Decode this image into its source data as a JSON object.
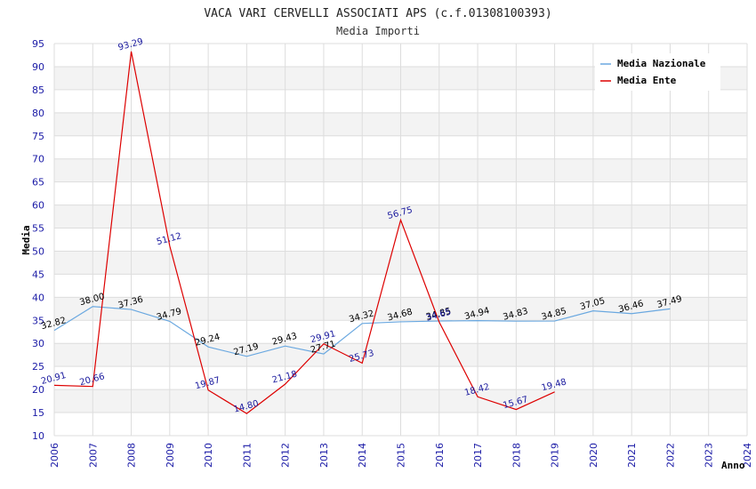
{
  "chart_data": {
    "type": "line",
    "title": "VACA VARI CERVELLI ASSOCIATI APS (c.f.01308100393)",
    "subtitle": "Media Importi",
    "xlabel": "Anno",
    "ylabel": "Media",
    "ylim": [
      10,
      95
    ],
    "yticks": [
      "10",
      "15",
      "20",
      "25",
      "30",
      "35",
      "40",
      "45",
      "50",
      "55",
      "60",
      "65",
      "70",
      "75",
      "80",
      "85",
      "90",
      "95"
    ],
    "x": [
      "2006",
      "2007",
      "2008",
      "2009",
      "2010",
      "2011",
      "2012",
      "2013",
      "2014",
      "2015",
      "2016",
      "2017",
      "2018",
      "2019",
      "2020",
      "2021",
      "2022",
      "2023",
      "2024"
    ],
    "grid": true,
    "legend_position": "top-right",
    "series": [
      {
        "name": "Media Nazionale",
        "color": "#6aa8e0",
        "x": [
          "2006",
          "2007",
          "2008",
          "2009",
          "2010",
          "2011",
          "2012",
          "2013",
          "2014",
          "2015",
          "2016",
          "2017",
          "2018",
          "2019",
          "2020",
          "2021",
          "2022"
        ],
        "values": [
          32.82,
          38.0,
          37.36,
          34.79,
          29.24,
          27.19,
          29.43,
          27.71,
          34.32,
          34.68,
          34.85,
          34.94,
          34.83,
          34.85,
          37.05,
          36.46,
          37.49
        ],
        "labels": [
          "32.82",
          "38.00",
          "37.36",
          "34.79",
          "29.24",
          "27.19",
          "29.43",
          "27.71",
          "34.32",
          "34.68",
          "34.85",
          "34.94",
          "34.83",
          "34.85",
          "37.05",
          "36.46",
          "37.49"
        ]
      },
      {
        "name": "Media Ente",
        "color": "#dd0000",
        "x": [
          "2006",
          "2007",
          "2008",
          "2009",
          "2010",
          "2011",
          "2012",
          "2013",
          "2014",
          "2015",
          "2016",
          "2017",
          "2018",
          "2019"
        ],
        "values": [
          20.91,
          20.66,
          93.29,
          51.12,
          19.87,
          14.8,
          21.18,
          29.91,
          25.73,
          56.75,
          34.65,
          18.42,
          15.67,
          19.48
        ],
        "labels": [
          "20.91",
          "20.66",
          "93.29",
          "51.12",
          "19.87",
          "14.80",
          "21.18",
          "29.91",
          "25.73",
          "56.75",
          "34.65",
          "18.42",
          "15.67",
          "19.48"
        ]
      }
    ]
  }
}
